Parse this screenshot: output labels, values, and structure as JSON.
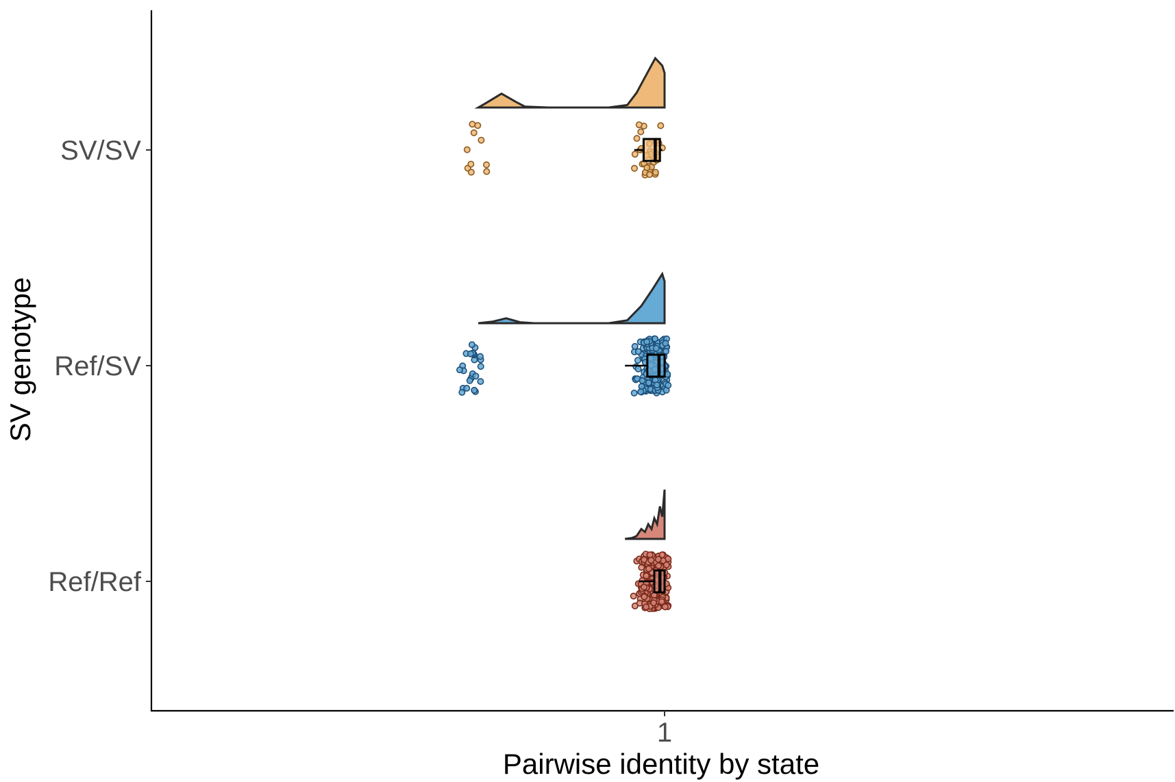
{
  "chart_data": {
    "type": "raincloud",
    "xlabel": "Pairwise identity by state",
    "ylabel": "SV genotype",
    "x_ticks": [
      "1"
    ],
    "xlim": [
      0.25,
      1.75
    ],
    "grid": false,
    "legend": "none",
    "categories": [
      "SV/SV",
      "Ref/SV",
      "Ref/Ref"
    ],
    "groups": [
      {
        "category": "SV/SV",
        "color": "#EEB979",
        "point_stroke": "#8a5a1e",
        "n_points": 45,
        "clusters": [
          {
            "center": 0.59,
            "spread": 0.017,
            "count": 10
          },
          {
            "center": 0.97,
            "spread": 0.022,
            "count": 35
          }
        ],
        "box": {
          "q1": 0.955,
          "median": 0.98,
          "q3": 0.99,
          "whisker_low": 0.935,
          "whisker_high": 0.995
        },
        "density": [
          [
            0.6,
            0.0
          ],
          [
            0.615,
            0.08
          ],
          [
            0.65,
            0.28
          ],
          [
            0.68,
            0.12
          ],
          [
            0.7,
            0.02
          ],
          [
            0.75,
            0.0
          ],
          [
            0.88,
            0.0
          ],
          [
            0.92,
            0.05
          ],
          [
            0.94,
            0.3
          ],
          [
            0.96,
            0.65
          ],
          [
            0.98,
            1.0
          ],
          [
            0.995,
            0.85
          ],
          [
            1.0,
            0.7
          ]
        ]
      },
      {
        "category": "Ref/SV",
        "color": "#66AAD6",
        "point_stroke": "#1d4f78",
        "n_points": 210,
        "clusters": [
          {
            "center": 0.59,
            "spread": 0.02,
            "count": 25
          },
          {
            "center": 0.975,
            "spread": 0.025,
            "count": 185
          }
        ],
        "box": {
          "q1": 0.963,
          "median": 0.988,
          "q3": 1.0,
          "whisker_low": 0.915,
          "whisker_high": 1.0
        },
        "density": [
          [
            0.6,
            0.0
          ],
          [
            0.63,
            0.03
          ],
          [
            0.66,
            0.1
          ],
          [
            0.69,
            0.02
          ],
          [
            0.72,
            0.0
          ],
          [
            0.88,
            0.0
          ],
          [
            0.92,
            0.06
          ],
          [
            0.95,
            0.35
          ],
          [
            0.975,
            0.7
          ],
          [
            0.995,
            1.0
          ],
          [
            1.0,
            0.85
          ]
        ]
      },
      {
        "category": "Ref/Ref",
        "color": "#D6877A",
        "point_stroke": "#7a2a1a",
        "n_points": 260,
        "clusters": [
          {
            "center": 0.975,
            "spread": 0.022,
            "count": 260
          }
        ],
        "box": {
          "q1": 0.978,
          "median": 0.99,
          "q3": 1.0,
          "whisker_low": 0.945,
          "whisker_high": 1.0
        },
        "density": [
          [
            0.915,
            0.0
          ],
          [
            0.93,
            0.02
          ],
          [
            0.94,
            0.06
          ],
          [
            0.95,
            0.2
          ],
          [
            0.958,
            0.14
          ],
          [
            0.965,
            0.3
          ],
          [
            0.972,
            0.2
          ],
          [
            0.978,
            0.42
          ],
          [
            0.984,
            0.3
          ],
          [
            0.99,
            0.66
          ],
          [
            0.995,
            0.45
          ],
          [
            1.0,
            1.0
          ]
        ]
      }
    ]
  }
}
